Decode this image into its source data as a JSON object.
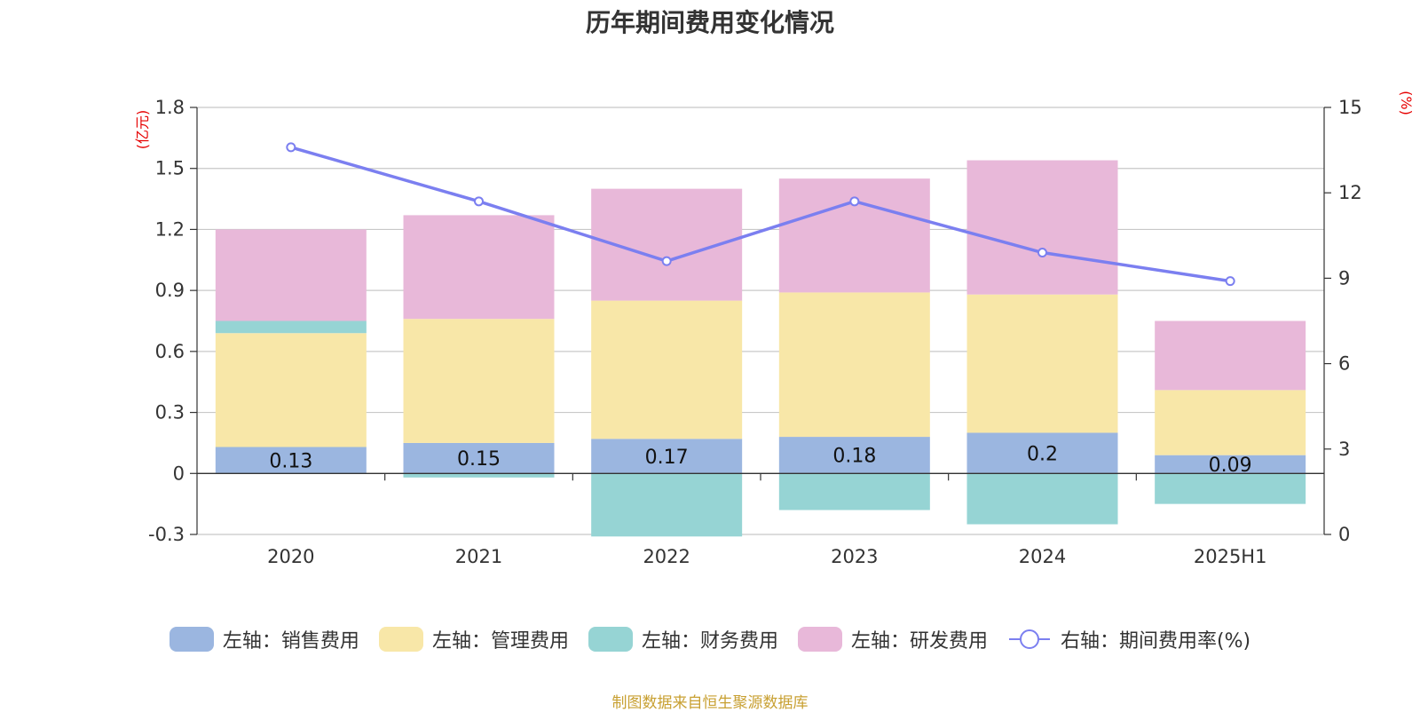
{
  "chart_data": {
    "type": "bar",
    "title": "历年期间费用变化情况",
    "categories": [
      "2020",
      "2021",
      "2022",
      "2023",
      "2024",
      "2025H1"
    ],
    "left_axis": {
      "unit": "(亿元)",
      "ylim": [
        -0.3,
        1.8
      ],
      "ticks": [
        "1.8",
        "1.5",
        "1.2",
        "0.9",
        "0.6",
        "0.3",
        "0",
        "-0.3"
      ]
    },
    "right_axis": {
      "unit": "(%)",
      "ylim": [
        0,
        15
      ],
      "ticks": [
        "15",
        "12",
        "9",
        "6",
        "3",
        "0"
      ]
    },
    "series": [
      {
        "name": "左轴：销售费用",
        "type": "bar",
        "axis": "left",
        "color": "#9bb6e0",
        "values": [
          0.13,
          0.15,
          0.17,
          0.18,
          0.2,
          0.09
        ],
        "labels": [
          "0.13",
          "0.15",
          "0.17",
          "0.18",
          "0.2",
          "0.09"
        ]
      },
      {
        "name": "左轴：管理费用",
        "type": "bar",
        "axis": "left",
        "color": "#f8e7a8",
        "values": [
          0.56,
          0.61,
          0.68,
          0.71,
          0.68,
          0.32
        ]
      },
      {
        "name": "左轴：财务费用",
        "type": "bar",
        "axis": "left",
        "color": "#96d4d4",
        "values": [
          0.06,
          -0.02,
          -0.31,
          -0.18,
          -0.25,
          -0.15
        ]
      },
      {
        "name": "左轴：研发费用",
        "type": "bar",
        "axis": "left",
        "color": "#e8b8d9",
        "values": [
          0.45,
          0.51,
          0.55,
          0.56,
          0.66,
          0.34
        ]
      },
      {
        "name": "右轴：期间费用率(%)",
        "type": "line",
        "axis": "right",
        "color": "#7b7ff0",
        "values": [
          13.6,
          11.7,
          9.6,
          11.7,
          9.9,
          8.9
        ]
      }
    ],
    "grid": true,
    "legend_position": "bottom",
    "source": "制图数据来自恒生聚源数据库"
  }
}
